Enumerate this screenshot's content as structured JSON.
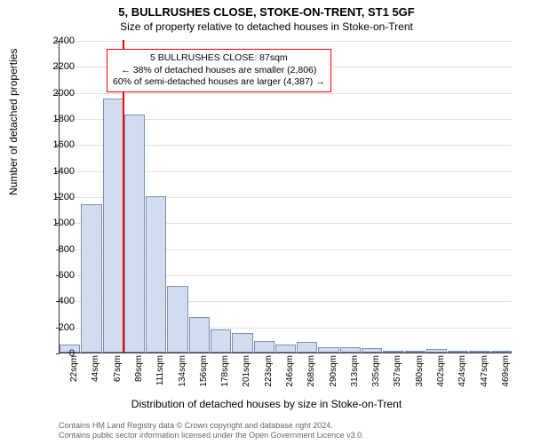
{
  "title_main": "5, BULLRUSHES CLOSE, STOKE-ON-TRENT, ST1 5GF",
  "title_sub": "Size of property relative to detached houses in Stoke-on-Trent",
  "ylabel": "Number of detached properties",
  "xlabel": "Distribution of detached houses by size in Stoke-on-Trent",
  "chart": {
    "type": "histogram",
    "ylim": [
      0,
      2400
    ],
    "ytick_step": 200,
    "bar_fill": "#d3dcef",
    "bar_stroke": "#7a8fb8",
    "grid_color": "#e0e0e0",
    "background_color": "#ffffff",
    "marker_color": "#ff0000",
    "marker_x": 87,
    "x_categories": [
      "22sqm",
      "44sqm",
      "67sqm",
      "89sqm",
      "111sqm",
      "134sqm",
      "156sqm",
      "178sqm",
      "201sqm",
      "223sqm",
      "246sqm",
      "268sqm",
      "290sqm",
      "313sqm",
      "335sqm",
      "357sqm",
      "380sqm",
      "402sqm",
      "424sqm",
      "447sqm",
      "469sqm"
    ],
    "values": [
      60,
      1140,
      1950,
      1830,
      1200,
      510,
      270,
      175,
      150,
      90,
      60,
      85,
      40,
      40,
      35,
      10,
      5,
      25,
      0,
      0,
      0
    ]
  },
  "annotation": {
    "line1": "5 BULLRUSHES CLOSE: 87sqm",
    "line2": "← 38% of detached houses are smaller (2,806)",
    "line3": "60% of semi-detached houses are larger (4,387) →",
    "border_color": "#ff0000"
  },
  "footer": {
    "line1": "Contains HM Land Registry data © Crown copyright and database right 2024.",
    "line2": "Contains public sector information licensed under the Open Government Licence v3.0."
  }
}
